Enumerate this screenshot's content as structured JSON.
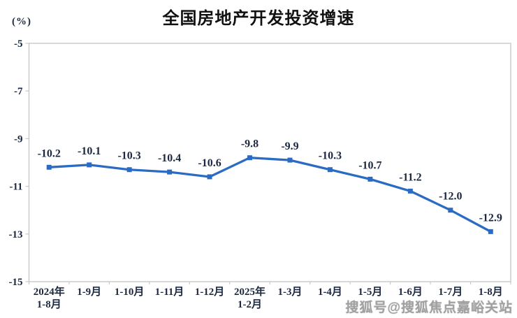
{
  "page": {
    "unit_label": "(%)",
    "watermark_text": "搜狐号@搜狐焦点嘉峪关站"
  },
  "chart_data": {
    "type": "line",
    "title": "全国房地产开发投资增速",
    "ylabel": "(%)",
    "categories": [
      "2024年\n1-8月",
      "1-9月",
      "1-10月",
      "1-11月",
      "1-12月",
      "2025年\n1-2月",
      "1-3月",
      "1-4月",
      "1-5月",
      "1-6月",
      "1-7月",
      "1-8月"
    ],
    "values": [
      -10.2,
      -10.1,
      -10.3,
      -10.4,
      -10.6,
      -9.8,
      -9.9,
      -10.3,
      -10.7,
      -11.2,
      -12.0,
      -12.9
    ],
    "data_labels": [
      "-10.2",
      "-10.1",
      "-10.3",
      "-10.4",
      "-10.6",
      "-9.8",
      "-9.9",
      "-10.3",
      "-10.7",
      "-11.2",
      "-12.0",
      "-12.9"
    ],
    "yticks": [
      -5,
      -7,
      -9,
      -11,
      -13,
      -15
    ],
    "ytick_labels": [
      "-5",
      "-7",
      "-9",
      "-11",
      "-13",
      "-15"
    ],
    "ylim": [
      -15,
      -5
    ],
    "grid": false,
    "legend": "none",
    "marker": "square",
    "line_color": "#2b6bc3",
    "frame_color": "#c9c9c9",
    "text_color": "#1c2840"
  }
}
